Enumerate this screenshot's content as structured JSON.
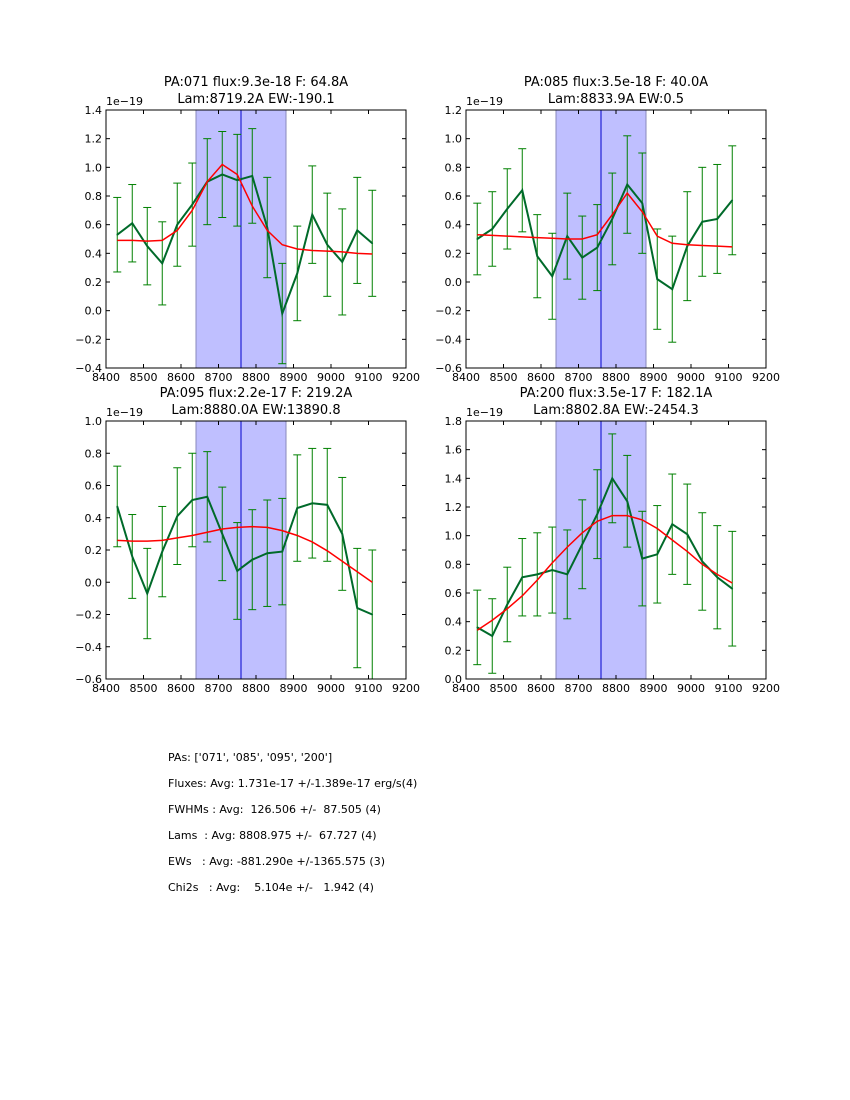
{
  "chart_data": [
    {
      "type": "line",
      "title_line1": "PA:071 flux:9.3e-18 F: 64.8A",
      "title_line2": "Lam:8719.2A EW:-190.1",
      "y_scale_label": "1e−19",
      "xlim": [
        8400,
        9200
      ],
      "ylim": [
        -0.4,
        1.4
      ],
      "xticks": [
        8400,
        8500,
        8600,
        8700,
        8800,
        8900,
        9000,
        9100,
        9200
      ],
      "yticks": [
        -0.4,
        -0.2,
        0.0,
        0.2,
        0.4,
        0.6,
        0.8,
        1.0,
        1.2,
        1.4
      ],
      "span": [
        8640,
        8880
      ],
      "vline": 8760,
      "x": [
        8430,
        8470,
        8510,
        8550,
        8590,
        8630,
        8670,
        8710,
        8750,
        8790,
        8830,
        8870,
        8910,
        8950,
        8990,
        9030,
        9070,
        9110
      ],
      "series": [
        {
          "name": "data",
          "color": "#006a2a",
          "values": [
            0.53,
            0.61,
            0.45,
            0.33,
            0.6,
            0.74,
            0.9,
            0.95,
            0.91,
            0.94,
            0.58,
            -0.02,
            0.26,
            0.67,
            0.46,
            0.34,
            0.56,
            0.47
          ],
          "errors": [
            0.26,
            0.27,
            0.27,
            0.29,
            0.29,
            0.29,
            0.3,
            0.3,
            0.32,
            0.33,
            0.35,
            0.35,
            0.33,
            0.34,
            0.36,
            0.37,
            0.37,
            0.37
          ]
        },
        {
          "name": "model",
          "color": "#ff0000",
          "values": [
            0.49,
            0.49,
            0.485,
            0.49,
            0.56,
            0.7,
            0.9,
            1.02,
            0.95,
            0.73,
            0.56,
            0.46,
            0.43,
            0.42,
            0.415,
            0.41,
            0.4,
            0.395
          ]
        }
      ]
    },
    {
      "type": "line",
      "title_line1": "PA:085 flux:3.5e-18 F: 40.0A",
      "title_line2": "Lam:8833.9A EW:0.5",
      "y_scale_label": "1e−19",
      "xlim": [
        8400,
        9200
      ],
      "ylim": [
        -0.6,
        1.2
      ],
      "xticks": [
        8400,
        8500,
        8600,
        8700,
        8800,
        8900,
        9000,
        9100,
        9200
      ],
      "yticks": [
        -0.6,
        -0.4,
        -0.2,
        0.0,
        0.2,
        0.4,
        0.6,
        0.8,
        1.0,
        1.2
      ],
      "span": [
        8640,
        8880
      ],
      "vline": 8760,
      "x": [
        8430,
        8470,
        8510,
        8550,
        8590,
        8630,
        8670,
        8710,
        8750,
        8790,
        8830,
        8870,
        8910,
        8950,
        8990,
        9030,
        9070,
        9110
      ],
      "series": [
        {
          "name": "data",
          "color": "#006a2a",
          "values": [
            0.3,
            0.37,
            0.51,
            0.64,
            0.18,
            0.04,
            0.32,
            0.17,
            0.24,
            0.44,
            0.68,
            0.55,
            0.02,
            -0.05,
            0.25,
            0.42,
            0.44,
            0.57
          ],
          "errors": [
            0.25,
            0.26,
            0.28,
            0.29,
            0.29,
            0.3,
            0.3,
            0.29,
            0.3,
            0.32,
            0.34,
            0.35,
            0.35,
            0.37,
            0.38,
            0.38,
            0.38,
            0.38
          ]
        },
        {
          "name": "model",
          "color": "#ff0000",
          "values": [
            0.33,
            0.325,
            0.32,
            0.315,
            0.31,
            0.305,
            0.3,
            0.3,
            0.33,
            0.47,
            0.62,
            0.49,
            0.32,
            0.27,
            0.26,
            0.255,
            0.25,
            0.245
          ]
        }
      ]
    },
    {
      "type": "line",
      "title_line1": "PA:095 flux:2.2e-17 F: 219.2A",
      "title_line2": "Lam:8880.0A EW:13890.8",
      "y_scale_label": "1e−19",
      "xlim": [
        8400,
        9200
      ],
      "ylim": [
        -0.6,
        1.0
      ],
      "xticks": [
        8400,
        8500,
        8600,
        8700,
        8800,
        8900,
        9000,
        9100,
        9200
      ],
      "yticks": [
        -0.6,
        -0.4,
        -0.2,
        0.0,
        0.2,
        0.4,
        0.6,
        0.8,
        1.0
      ],
      "span": [
        8640,
        8880
      ],
      "vline": 8760,
      "x": [
        8430,
        8470,
        8510,
        8550,
        8590,
        8630,
        8670,
        8710,
        8750,
        8790,
        8830,
        8870,
        8910,
        8950,
        8990,
        9030,
        9070,
        9110
      ],
      "series": [
        {
          "name": "data",
          "color": "#006a2a",
          "values": [
            0.47,
            0.16,
            -0.07,
            0.19,
            0.41,
            0.51,
            0.53,
            0.3,
            0.07,
            0.14,
            0.18,
            0.19,
            0.46,
            0.49,
            0.48,
            0.3,
            -0.16,
            -0.2
          ],
          "errors": [
            0.25,
            0.26,
            0.28,
            0.28,
            0.3,
            0.29,
            0.28,
            0.29,
            0.3,
            0.31,
            0.33,
            0.33,
            0.33,
            0.34,
            0.35,
            0.35,
            0.37,
            0.4
          ]
        },
        {
          "name": "model",
          "color": "#ff0000",
          "values": [
            0.26,
            0.255,
            0.255,
            0.26,
            0.275,
            0.29,
            0.31,
            0.33,
            0.34,
            0.345,
            0.34,
            0.32,
            0.29,
            0.25,
            0.195,
            0.13,
            0.065,
            0.0
          ]
        }
      ]
    },
    {
      "type": "line",
      "title_line1": "PA:200 flux:3.5e-17 F: 182.1A",
      "title_line2": "Lam:8802.8A EW:-2454.3",
      "y_scale_label": "1e−19",
      "xlim": [
        8400,
        9200
      ],
      "ylim": [
        0.0,
        1.8
      ],
      "xticks": [
        8400,
        8500,
        8600,
        8700,
        8800,
        8900,
        9000,
        9100,
        9200
      ],
      "yticks": [
        0.0,
        0.2,
        0.4,
        0.6,
        0.8,
        1.0,
        1.2,
        1.4,
        1.6,
        1.8
      ],
      "span": [
        8640,
        8880
      ],
      "vline": 8760,
      "x": [
        8430,
        8470,
        8510,
        8550,
        8590,
        8630,
        8670,
        8710,
        8750,
        8790,
        8830,
        8870,
        8910,
        8950,
        8990,
        9030,
        9070,
        9110
      ],
      "series": [
        {
          "name": "data",
          "color": "#006a2a",
          "values": [
            0.36,
            0.3,
            0.52,
            0.71,
            0.73,
            0.76,
            0.73,
            0.94,
            1.15,
            1.4,
            1.24,
            0.84,
            0.87,
            1.08,
            1.01,
            0.82,
            0.71,
            0.63
          ],
          "errors": [
            0.26,
            0.26,
            0.26,
            0.27,
            0.29,
            0.3,
            0.31,
            0.31,
            0.31,
            0.31,
            0.32,
            0.33,
            0.34,
            0.35,
            0.35,
            0.34,
            0.36,
            0.4
          ]
        },
        {
          "name": "model",
          "color": "#ff0000",
          "values": [
            0.34,
            0.41,
            0.49,
            0.58,
            0.69,
            0.81,
            0.92,
            1.02,
            1.1,
            1.14,
            1.14,
            1.11,
            1.05,
            0.97,
            0.89,
            0.8,
            0.73,
            0.67
          ]
        }
      ]
    }
  ],
  "summary": {
    "pas": "PAs: ['071', '085', '095', '200']",
    "fluxes": "Fluxes: Avg: 1.731e-17 +/-1.389e-17 erg/s(4)",
    "fwhms": "FWHMs : Avg:  126.506 +/-  87.505 (4)",
    "lams": "Lams  : Avg: 8808.975 +/-  67.727 (4)",
    "ews": "EWs   : Avg: -881.290e +/-1365.575 (3)",
    "chi2s": "Chi2s   : Avg:    5.104e +/-   1.942 (4)"
  },
  "colors": {
    "data_line": "#006a2a",
    "errorbar": "#008000",
    "model_line": "#ff0000",
    "span_fill": "#bfbfff",
    "span_edge": "#8888bb",
    "vline": "#0000cc"
  }
}
